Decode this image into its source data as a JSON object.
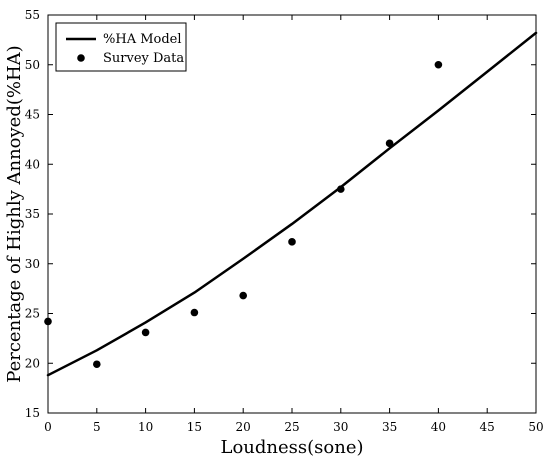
{
  "chart_data": {
    "type": "scatter",
    "xlabel": "Loudness(sone)",
    "ylabel": "Percentage of Highly Annoyed(%HA)",
    "xlim": [
      0,
      50
    ],
    "ylim": [
      15,
      55
    ],
    "x_ticks": [
      0,
      5,
      10,
      15,
      20,
      25,
      30,
      35,
      40,
      45,
      50
    ],
    "y_ticks": [
      15,
      20,
      25,
      30,
      35,
      40,
      45,
      50,
      55
    ],
    "x_tick_labels": [
      "0",
      "5",
      "10",
      "15",
      "20",
      "25",
      "30",
      "35",
      "40",
      "45",
      "50"
    ],
    "y_tick_labels": [
      "15",
      "20",
      "25",
      "30",
      "35",
      "40",
      "45",
      "50",
      "55"
    ],
    "grid": false,
    "legend_position": "top-left",
    "series": [
      {
        "name": "%HA Model",
        "type": "line",
        "color": "#000000",
        "x": [
          0,
          5,
          10,
          15,
          20,
          25,
          30,
          35,
          40,
          45,
          50
        ],
        "y": [
          18.8,
          21.3,
          24.1,
          27.1,
          30.5,
          34.0,
          37.7,
          41.6,
          45.4,
          49.3,
          53.2
        ]
      },
      {
        "name": "Survey Data",
        "type": "scatter",
        "color": "#000000",
        "x": [
          0,
          5,
          10,
          15,
          20,
          25,
          30,
          35,
          40
        ],
        "y": [
          24.2,
          19.9,
          23.1,
          25.1,
          26.8,
          32.2,
          37.5,
          42.1,
          50.0
        ]
      }
    ]
  }
}
